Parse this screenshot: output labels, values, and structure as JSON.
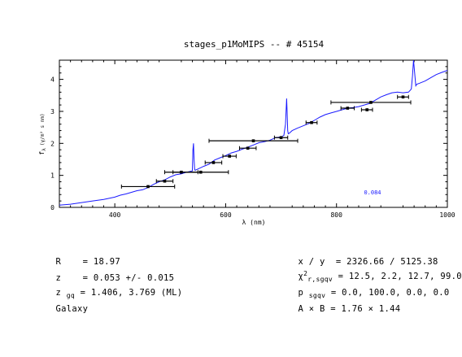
{
  "chart_data": {
    "type": "line",
    "title": "stages_p1MoMIPS -- # 45154",
    "xlabel": "λ (nm)",
    "ylabel_main": "f",
    "ylabel_sub": "λ",
    "ylabel_units": "(γ/m² s nm)",
    "xlim": [
      300,
      1000
    ],
    "ylim": [
      0,
      4.6
    ],
    "xticks": [
      400,
      600,
      800,
      1000
    ],
    "yticks": [
      0,
      1,
      2,
      3,
      4
    ],
    "annotation": "0.084",
    "colors": {
      "spectrum": "#1a1aff",
      "annotation": "#1a1aff",
      "points": "#000000"
    },
    "spectrum": {
      "name": "",
      "x": [
        300,
        320,
        340,
        360,
        380,
        400,
        410,
        420,
        430,
        440,
        450,
        460,
        470,
        480,
        490,
        500,
        510,
        520,
        530,
        540,
        541,
        542,
        543,
        544,
        545,
        550,
        560,
        570,
        580,
        590,
        600,
        610,
        620,
        630,
        640,
        650,
        660,
        670,
        680,
        690,
        700,
        705,
        708,
        710,
        711,
        712,
        713,
        715,
        720,
        730,
        740,
        750,
        760,
        770,
        780,
        790,
        800,
        810,
        820,
        830,
        840,
        850,
        860,
        870,
        880,
        890,
        900,
        910,
        920,
        930,
        935,
        937,
        939,
        941,
        943,
        945,
        950,
        960,
        970,
        980,
        990,
        1000
      ],
      "y": [
        0.07,
        0.1,
        0.15,
        0.2,
        0.25,
        0.32,
        0.38,
        0.42,
        0.47,
        0.52,
        0.55,
        0.62,
        0.72,
        0.8,
        0.86,
        0.95,
        1.02,
        1.05,
        1.1,
        1.14,
        1.8,
        2.0,
        1.5,
        1.2,
        1.16,
        1.2,
        1.28,
        1.35,
        1.48,
        1.55,
        1.62,
        1.7,
        1.75,
        1.82,
        1.88,
        1.95,
        2.02,
        2.05,
        2.1,
        2.18,
        2.2,
        2.25,
        2.6,
        3.4,
        2.9,
        2.4,
        2.3,
        2.32,
        2.4,
        2.48,
        2.55,
        2.62,
        2.72,
        2.82,
        2.9,
        2.95,
        3.0,
        3.05,
        3.1,
        3.12,
        3.15,
        3.2,
        3.25,
        3.35,
        3.45,
        3.52,
        3.58,
        3.6,
        3.58,
        3.6,
        3.7,
        4.1,
        4.7,
        4.2,
        3.8,
        3.85,
        3.88,
        3.95,
        4.05,
        4.15,
        4.22,
        4.28
      ]
    },
    "photometry": [
      {
        "x": 460,
        "y": 0.65,
        "xerr": 48
      },
      {
        "x": 490,
        "y": 0.82,
        "xerr": 15
      },
      {
        "x": 520,
        "y": 1.1,
        "xerr": 30
      },
      {
        "x": 555,
        "y": 1.1,
        "xerr": 50
      },
      {
        "x": 578,
        "y": 1.4,
        "xerr": 15
      },
      {
        "x": 607,
        "y": 1.6,
        "xerr": 12
      },
      {
        "x": 640,
        "y": 1.85,
        "xerr": 15
      },
      {
        "x": 650,
        "y": 2.08,
        "xerr": 80
      },
      {
        "x": 700,
        "y": 2.18,
        "xerr": 12
      },
      {
        "x": 755,
        "y": 2.65,
        "xerr": 10
      },
      {
        "x": 820,
        "y": 3.1,
        "xerr": 12
      },
      {
        "x": 855,
        "y": 3.05,
        "xerr": 10
      },
      {
        "x": 862,
        "y": 3.28,
        "xerr": 72
      },
      {
        "x": 920,
        "y": 3.45,
        "xerr": 10
      }
    ]
  },
  "info": {
    "r_label": "R",
    "r_value": "= 18.97",
    "z_label": "z",
    "z_value": "= 0.053 +/- 0.015",
    "zgq_label": "z",
    "zgq_sub": "gq",
    "zgq_value": "= 1.406, 3.769 (ML)",
    "type": "Galaxy",
    "xy_label": "x / y",
    "xy_value": "= 2326.66 / 5125.38",
    "chi_label": "χ",
    "chi_sup": "2",
    "chi_sub": "r,sgqv",
    "chi_value": "= 12.5, 2.2, 12.7, 99.0",
    "p_label": "p",
    "p_sub": "sgqv",
    "p_value": "= 0.0, 100.0, 0.0, 0.0",
    "ab_label": "A × B",
    "ab_value": "= 1.76 × 1.44"
  }
}
